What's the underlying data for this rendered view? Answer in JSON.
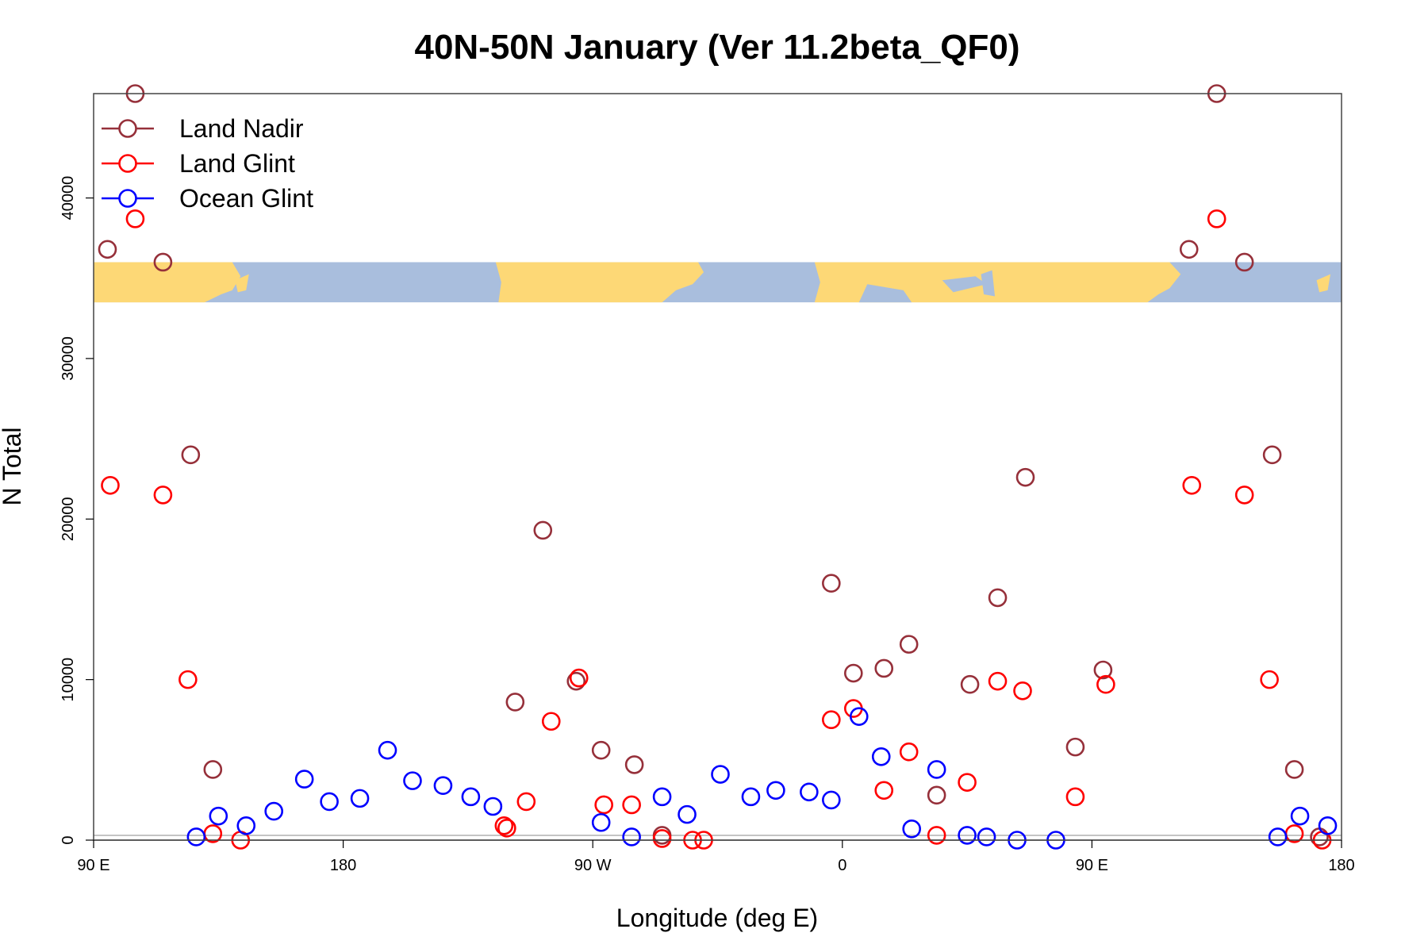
{
  "chart_data": {
    "type": "scatter",
    "title": "40N-50N January (Ver 11.2beta_QF0)",
    "xlabel": "Longitude (deg E)",
    "ylabel": "N Total",
    "xlim": [
      90,
      540
    ],
    "ylim": [
      0,
      46500
    ],
    "x_ticks": [
      {
        "value": 90,
        "label": "90 E"
      },
      {
        "value": 180,
        "label": "180"
      },
      {
        "value": 270,
        "label": "90 W"
      },
      {
        "value": 360,
        "label": "0"
      },
      {
        "value": 450,
        "label": "90 E"
      },
      {
        "value": 540,
        "label": "180"
      }
    ],
    "y_ticks": [
      {
        "value": 0,
        "label": "0"
      },
      {
        "value": 10000,
        "label": "10000"
      },
      {
        "value": 20000,
        "label": "20000"
      },
      {
        "value": 30000,
        "label": "30000"
      },
      {
        "value": 40000,
        "label": "40000"
      }
    ],
    "map_strip": {
      "y_range": [
        33500,
        36000
      ],
      "land_color": "#fdd876",
      "ocean_color": "#a9bedd"
    },
    "legend": {
      "position": "top-left"
    },
    "series": [
      {
        "name": "Land Nadir",
        "color": "#96303a",
        "points": [
          [
            95,
            36800
          ],
          [
            105,
            46500
          ],
          [
            115,
            36000
          ],
          [
            125,
            24000
          ],
          [
            133,
            4400
          ],
          [
            242,
            8600
          ],
          [
            252,
            19300
          ],
          [
            264,
            9900
          ],
          [
            273,
            5600
          ],
          [
            285,
            4700
          ],
          [
            295,
            300
          ],
          [
            356,
            16000
          ],
          [
            364,
            10400
          ],
          [
            375,
            10700
          ],
          [
            384,
            12200
          ],
          [
            394,
            2800
          ],
          [
            406,
            9700
          ],
          [
            416,
            15100
          ],
          [
            426,
            22600
          ],
          [
            444,
            5800
          ],
          [
            454,
            10600
          ],
          [
            485,
            36800
          ],
          [
            495,
            46500
          ],
          [
            505,
            36000
          ],
          [
            515,
            24000
          ],
          [
            523,
            4400
          ],
          [
            532,
            200
          ]
        ]
      },
      {
        "name": "Land Glint",
        "color": "#ff0000",
        "points": [
          [
            96,
            22100
          ],
          [
            105,
            38700
          ],
          [
            115,
            21500
          ],
          [
            124,
            10000
          ],
          [
            133,
            400
          ],
          [
            143,
            0
          ],
          [
            238,
            900
          ],
          [
            239,
            750
          ],
          [
            246,
            2400
          ],
          [
            255,
            7400
          ],
          [
            265,
            10100
          ],
          [
            274,
            2200
          ],
          [
            284,
            2200
          ],
          [
            295,
            100
          ],
          [
            306,
            0
          ],
          [
            310,
            0
          ],
          [
            356,
            7500
          ],
          [
            364,
            8200
          ],
          [
            375,
            3100
          ],
          [
            384,
            5500
          ],
          [
            394,
            300
          ],
          [
            405,
            3600
          ],
          [
            416,
            9900
          ],
          [
            425,
            9300
          ],
          [
            444,
            2700
          ],
          [
            455,
            9700
          ],
          [
            486,
            22100
          ],
          [
            495,
            38700
          ],
          [
            505,
            21500
          ],
          [
            514,
            10000
          ],
          [
            523,
            400
          ],
          [
            533,
            0
          ]
        ]
      },
      {
        "name": "Ocean Glint",
        "color": "#0000ff",
        "points": [
          [
            127,
            200
          ],
          [
            135,
            1500
          ],
          [
            145,
            900
          ],
          [
            155,
            1800
          ],
          [
            166,
            3800
          ],
          [
            175,
            2400
          ],
          [
            186,
            2600
          ],
          [
            196,
            5600
          ],
          [
            205,
            3700
          ],
          [
            216,
            3400
          ],
          [
            226,
            2700
          ],
          [
            234,
            2100
          ],
          [
            273,
            1100
          ],
          [
            284,
            200
          ],
          [
            295,
            2700
          ],
          [
            304,
            1600
          ],
          [
            316,
            4100
          ],
          [
            327,
            2700
          ],
          [
            336,
            3100
          ],
          [
            348,
            3000
          ],
          [
            356,
            2500
          ],
          [
            366,
            7700
          ],
          [
            374,
            5200
          ],
          [
            385,
            700
          ],
          [
            394,
            4400
          ],
          [
            405,
            300
          ],
          [
            412,
            200
          ],
          [
            423,
            0
          ],
          [
            437,
            0
          ],
          [
            517,
            200
          ],
          [
            525,
            1500
          ],
          [
            535,
            900
          ]
        ]
      }
    ]
  }
}
